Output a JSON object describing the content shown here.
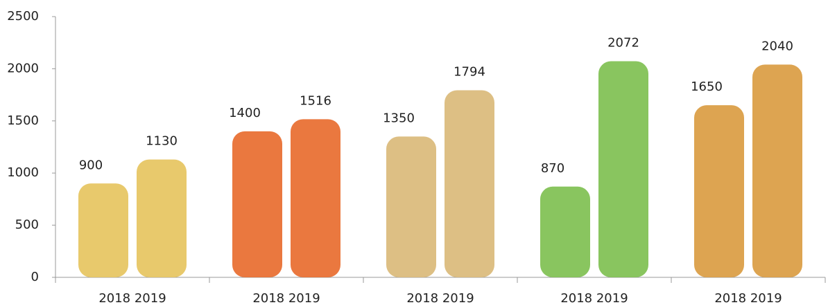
{
  "chart_data": {
    "type": "bar",
    "categories": [
      "2018 2019",
      "2018 2019",
      "2018 2019",
      "2018 2019",
      "2018 2019"
    ],
    "colors": [
      "#e6c35c",
      "#e8692a",
      "#d9b877",
      "#7cbf4e",
      "#d99a3e"
    ],
    "series": [
      {
        "values": [
          900,
          1400,
          1350,
          870,
          1650
        ]
      },
      {
        "values": [
          1130,
          1516,
          1794,
          2072,
          2040
        ]
      }
    ],
    "ylim": [
      0,
      2500
    ],
    "yticks": [
      0,
      500,
      1000,
      1500,
      2000,
      2500
    ],
    "grid": false
  }
}
